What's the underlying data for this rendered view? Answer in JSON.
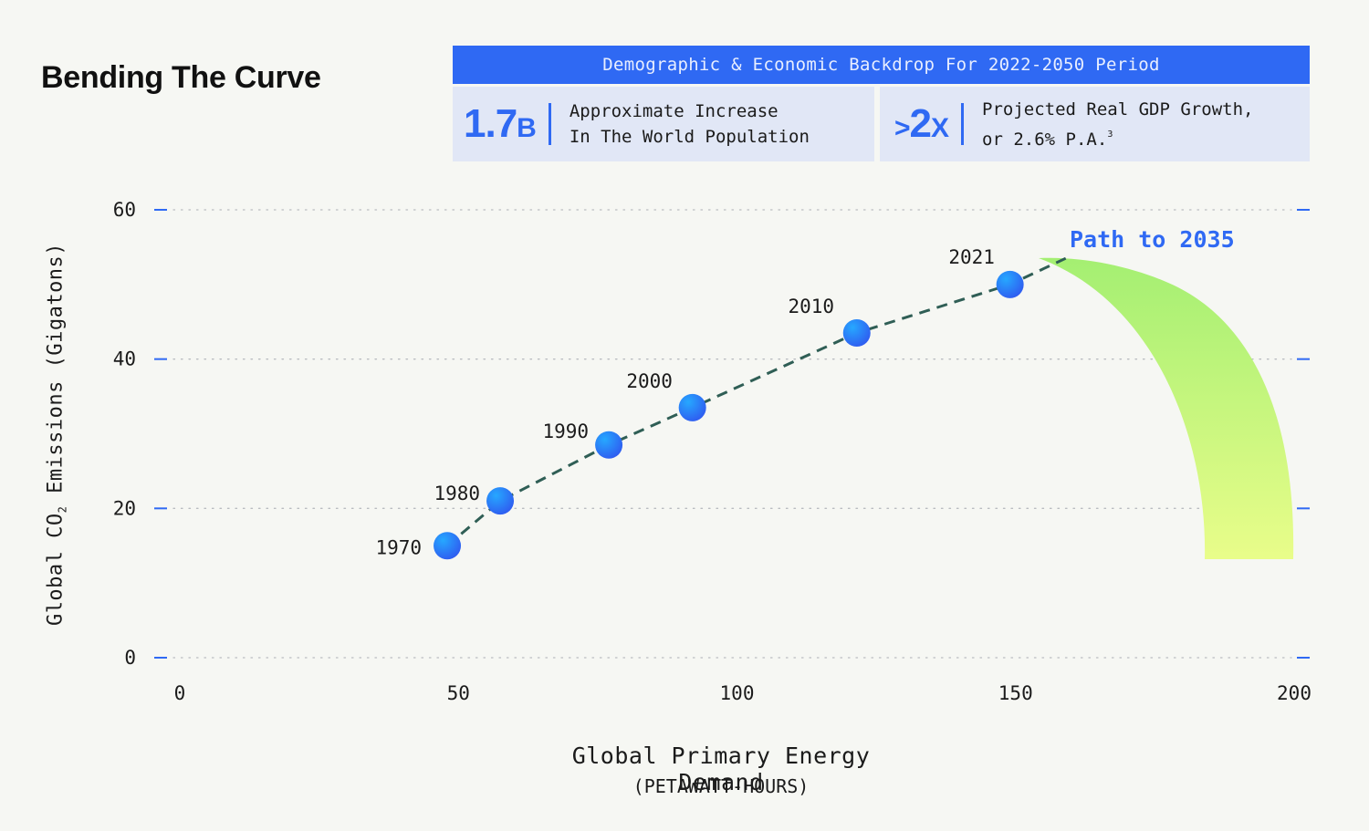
{
  "title": "Bending The Curve",
  "backdrop": {
    "header": "Demographic & Economic Backdrop For 2022-2050 Period",
    "stat1": {
      "value": "1.7",
      "unit": "B",
      "line1": "Approximate Increase",
      "line2": "In The World Population"
    },
    "stat2": {
      "prefix": ">",
      "value": "2",
      "unit": "X",
      "line1": "Projected Real GDP Growth,",
      "line2": "or 2.6% P.A.",
      "footnote": "3"
    }
  },
  "colors": {
    "accent": "#2f69f3",
    "line": "#2f5e55",
    "path_top": "#a4ef72",
    "path_bottom": "#e9fd8a"
  },
  "chart_data": {
    "type": "scatter",
    "xlabel": "Global Primary Energy Demand",
    "xlabel_sub": "(PETAWATT-HOURS)",
    "ylabel_pre": "Global CO",
    "ylabel_sub": "2",
    "ylabel_post": " Emissions (Gigatons)",
    "xlim": [
      0,
      200
    ],
    "ylim": [
      0,
      60
    ],
    "xticks": [
      "0",
      "50",
      "100",
      "150",
      "200"
    ],
    "yticks": [
      "0",
      "20",
      "40",
      "60"
    ],
    "points": [
      {
        "label": "1970",
        "x": 48,
        "y": 15
      },
      {
        "label": "1980",
        "x": 57.5,
        "y": 21
      },
      {
        "label": "1990",
        "x": 77,
        "y": 28.5
      },
      {
        "label": "2000",
        "x": 92,
        "y": 33.5
      },
      {
        "label": "2010",
        "x": 121.5,
        "y": 43.5
      },
      {
        "label": "2021",
        "x": 149,
        "y": 50
      }
    ],
    "trend_end": {
      "x": 159,
      "y": 53.5
    },
    "annotation": "Path to 2035"
  }
}
